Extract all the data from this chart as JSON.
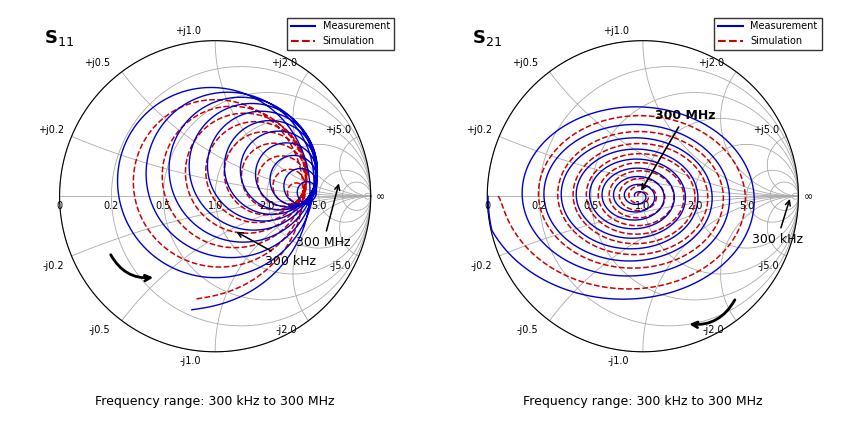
{
  "s11_label": "S$_{11}$",
  "s21_label": "S$_{21}$",
  "freq_label": "Frequency range: 300 kHz to 300 MHz",
  "meas_color": "#0000CC",
  "sim_color": "#CC0000",
  "meas_label": "Measurement",
  "sim_label": "Simulation",
  "bg_color": "#ffffff",
  "grid_color": "#aaaaaa",
  "title_fontsize": 13,
  "label_fontsize": 7,
  "annotation_fontsize": 9,
  "freq_label_fontsize": 9
}
